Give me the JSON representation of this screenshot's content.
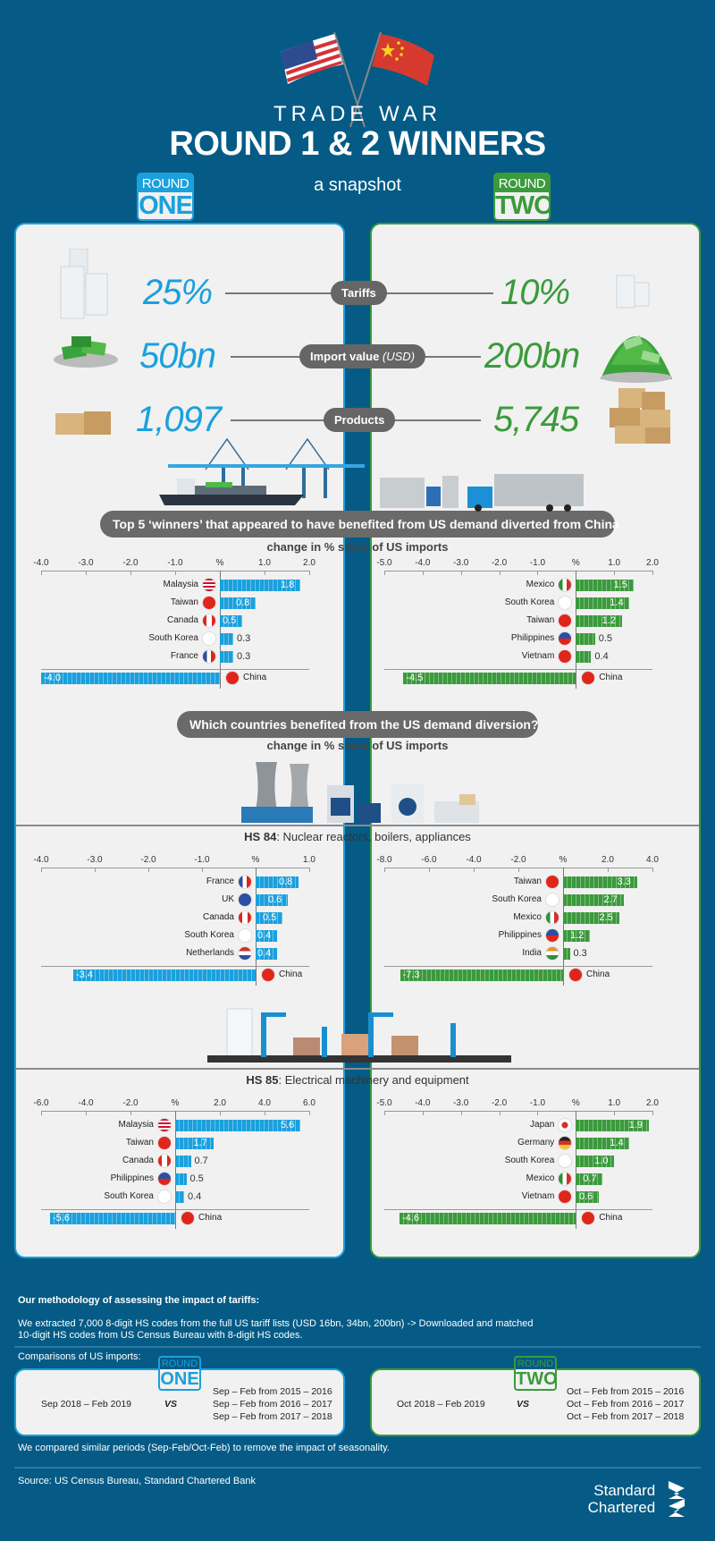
{
  "header": {
    "title_small": "TRADE WAR",
    "title_big": "ROUND 1 & 2 WINNERS",
    "subtitle": "a snapshot",
    "flags": [
      "us-flag",
      "china-flag"
    ]
  },
  "rounds": {
    "one": {
      "top": "ROUND",
      "bottom": "ONE",
      "color": "#1aa0dd"
    },
    "two": {
      "top": "ROUND",
      "bottom": "TWO",
      "color": "#3b9a3c"
    }
  },
  "stats": [
    {
      "label": "Tariffs",
      "label_suffix": "",
      "round1": "25%",
      "round2": "10%",
      "icon": "paper-stack-icon"
    },
    {
      "label": "Import value ",
      "label_suffix": "(USD)",
      "round1": "50bn",
      "round2": "200bn",
      "icon": "money-pile-icon"
    },
    {
      "label": "Products",
      "label_suffix": "",
      "round1": "1,097",
      "round2": "5,745",
      "icon": "box-icon"
    }
  ],
  "sections": {
    "top5_banner": "Top 5 ‘winners’ that appeared to have benefited from US demand diverted from China",
    "top5_sub": "change in % share of US imports",
    "which_banner": "Which countries benefited from the US demand diversion?",
    "which_sub": "change in % share of US imports",
    "hs84_code": "HS 84",
    "hs84_desc": ": Nuclear reactors, boilers, appliances",
    "hs85_code": "HS 85",
    "hs85_desc": ": Electrical machinery and equipment"
  },
  "chart_data": [
    {
      "type": "bar",
      "title": "Top 5 winners - Round One",
      "xlabel": "%",
      "ylabel": "",
      "xlim": [
        -4.0,
        2.0
      ],
      "ticks": [
        "-4.0",
        "-3.0",
        "-2.0",
        "-1.0",
        "%",
        "1.0",
        "2.0"
      ],
      "categories": [
        "Malaysia",
        "Taiwan",
        "Canada",
        "South Korea",
        "France",
        "China"
      ],
      "values": [
        1.8,
        0.8,
        0.5,
        0.3,
        0.3,
        -4.0
      ],
      "labels": [
        "1.8",
        "0.8",
        "0.5",
        "0.3",
        "0.3",
        "-4.0"
      ],
      "color": "#1aa0dd"
    },
    {
      "type": "bar",
      "title": "Top 5 winners - Round Two",
      "xlabel": "%",
      "ylabel": "",
      "xlim": [
        -5.0,
        2.0
      ],
      "ticks": [
        "-5.0",
        "-4.0",
        "-3.0",
        "-2.0",
        "-1.0",
        "%",
        "1.0",
        "2.0"
      ],
      "categories": [
        "Mexico",
        "South Korea",
        "Taiwan",
        "Philippines",
        "Vietnam",
        "China"
      ],
      "values": [
        1.5,
        1.4,
        1.2,
        0.5,
        0.4,
        -4.5
      ],
      "labels": [
        "1.5",
        "1.4",
        "1.2",
        "0.5",
        "0.4",
        "-4.5"
      ],
      "color": "#3b9a3c"
    },
    {
      "type": "bar",
      "title": "HS 84 - Round One",
      "xlabel": "%",
      "ylabel": "",
      "xlim": [
        -4.0,
        1.0
      ],
      "ticks": [
        "-4.0",
        "-3.0",
        "-2.0",
        "-1.0",
        "%",
        "1.0"
      ],
      "categories": [
        "France",
        "UK",
        "Canada",
        "South Korea",
        "Netherlands",
        "China"
      ],
      "values": [
        0.8,
        0.6,
        0.5,
        0.4,
        0.4,
        -3.4
      ],
      "labels": [
        "0.8",
        "0.6",
        "0.5",
        "0.4",
        "0.4",
        "-3.4"
      ],
      "color": "#1aa0dd"
    },
    {
      "type": "bar",
      "title": "HS 84 - Round Two",
      "xlabel": "%",
      "ylabel": "",
      "xlim": [
        -8.0,
        4.0
      ],
      "ticks": [
        "-8.0",
        "-6.0",
        "-4.0",
        "-2.0",
        "%",
        "2.0",
        "4.0"
      ],
      "categories": [
        "Taiwan",
        "South Korea",
        "Mexico",
        "Philippines",
        "India",
        "China"
      ],
      "values": [
        3.3,
        2.7,
        2.5,
        1.2,
        0.3,
        -7.3
      ],
      "labels": [
        "3.3",
        "2.7",
        "2.5",
        "1.2",
        "0.3",
        "-7.3"
      ],
      "color": "#3b9a3c"
    },
    {
      "type": "bar",
      "title": "HS 85 - Round One",
      "xlabel": "%",
      "ylabel": "",
      "xlim": [
        -6.0,
        6.0
      ],
      "ticks": [
        "-6.0",
        "-4.0",
        "-2.0",
        "%",
        "2.0",
        "4.0",
        "6.0"
      ],
      "categories": [
        "Malaysia",
        "Taiwan",
        "Canada",
        "Philippines",
        "South Korea",
        "China"
      ],
      "values": [
        5.6,
        1.7,
        0.7,
        0.5,
        0.4,
        -5.6
      ],
      "labels": [
        "5.6",
        "1.7",
        "0.7",
        "0.5",
        "0.4",
        "-5.6"
      ],
      "color": "#1aa0dd"
    },
    {
      "type": "bar",
      "title": "HS 85 - Round Two",
      "xlabel": "%",
      "ylabel": "",
      "xlim": [
        -5.0,
        2.0
      ],
      "ticks": [
        "-5.0",
        "-4.0",
        "-3.0",
        "-2.0",
        "-1.0",
        "%",
        "1.0",
        "2.0"
      ],
      "categories": [
        "Japan",
        "Germany",
        "South Korea",
        "Mexico",
        "Vietnam",
        "China"
      ],
      "values": [
        1.9,
        1.4,
        1.0,
        0.7,
        0.6,
        -4.6
      ],
      "labels": [
        "1.9",
        "1.4",
        "1.0",
        "0.7",
        "0.6",
        "-4.6"
      ],
      "color": "#3b9a3c"
    }
  ],
  "methodology": {
    "heading": "Our methodology of assessing the impact of tariffs:",
    "line1": "We extracted 7,000 8-digit HS codes from the full US tariff lists (USD 16bn, 34bn, 200bn) -> Downloaded and matched",
    "line2": "10-digit HS codes from US Census Bureau with 8-digit HS codes.",
    "comparisons_label": "Comparisons of US imports:",
    "round1": {
      "period": "Sep 2018 – Feb 2019",
      "vs": "VS",
      "compare": [
        "Sep – Feb from 2015 – 2016",
        "Sep – Feb from 2016 – 2017",
        "Sep – Feb from 2017 – 2018"
      ]
    },
    "round2": {
      "period": "Oct 2018 – Feb 2019",
      "vs": "VS",
      "compare": [
        "Oct – Feb from 2015 – 2016",
        "Oct – Feb from 2016 – 2017",
        "Oct – Feb from 2017 – 2018"
      ]
    },
    "note": "We compared similar periods (Sep-Feb/Oct-Feb) to remove the impact of seasonality."
  },
  "footer": {
    "source": "Source: US Census Bureau, Standard Chartered Bank",
    "logo_line1": "Standard",
    "logo_line2": "Chartered"
  }
}
